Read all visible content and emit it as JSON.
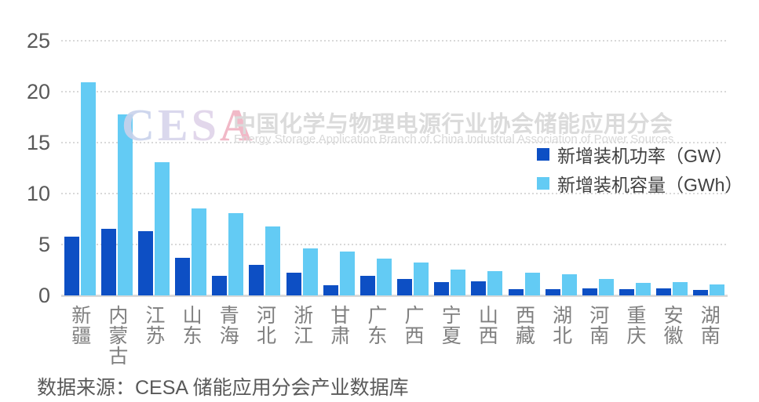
{
  "chart_data": {
    "type": "bar",
    "title": "",
    "categories": [
      "新疆",
      "内蒙古",
      "江苏",
      "山东",
      "青海",
      "河北",
      "浙江",
      "甘肃",
      "广东",
      "广西",
      "宁夏",
      "山西",
      "西藏",
      "湖北",
      "河南",
      "重庆",
      "安徽",
      "湖南"
    ],
    "series": [
      {
        "name": "新增装机功率（GW）",
        "key": "power",
        "color": "#0d4fc4",
        "values": [
          5.8,
          6.5,
          6.3,
          3.7,
          1.9,
          3.0,
          2.2,
          1.0,
          1.9,
          1.6,
          1.3,
          1.4,
          0.6,
          0.6,
          0.7,
          0.6,
          0.7,
          0.5
        ]
      },
      {
        "name": "新增装机容量（GWh）",
        "key": "capacity",
        "color": "#63cbf4",
        "values": [
          20.9,
          17.8,
          13.1,
          8.5,
          8.1,
          6.8,
          4.6,
          4.3,
          3.6,
          3.2,
          2.5,
          2.4,
          2.2,
          2.1,
          1.6,
          1.2,
          1.3,
          1.1
        ]
      }
    ],
    "ylim": [
      0,
      25
    ],
    "yticks": [
      0,
      5,
      10,
      15,
      20,
      25
    ],
    "grid": "horizontal-dotted",
    "legend_position": "upper-right"
  },
  "legend": [
    {
      "label": "新增装机功率（GW）",
      "color": "#0d4fc4"
    },
    {
      "label": "新增装机容量（GWh）",
      "color": "#63cbf4"
    }
  ],
  "watermark": {
    "logo": "CESA",
    "logo_colors": [
      "#c9d2ec",
      "#d6d4ec",
      "#dfd3e9",
      "#f0b2c2"
    ],
    "title_cn": "中国化学与物理电源行业协会储能应用分会",
    "subtitle_en": "Energy Storage Application Branch of China Industrial Association of Power Sources"
  },
  "source_note": "数据来源：CESA 储能应用分会产业数据库",
  "colors": {
    "gridline": "#d9d9d9",
    "y_label": "#595959",
    "x_label": "#7f7f7f",
    "legend_text": "#404040"
  }
}
